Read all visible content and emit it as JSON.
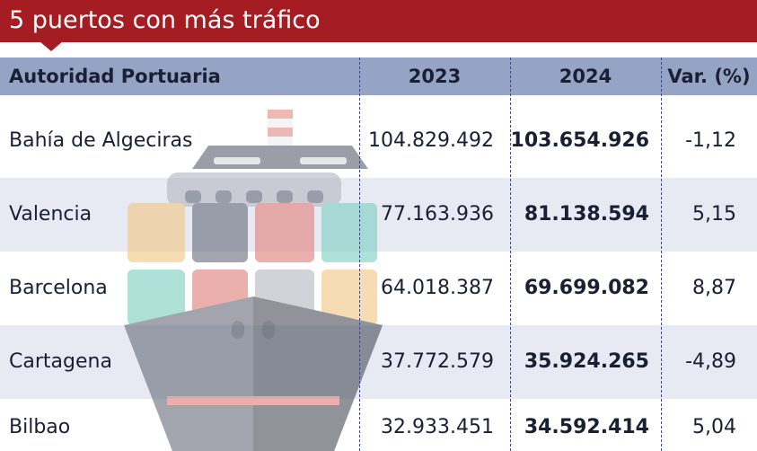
{
  "title": "5 puertos con más tráfico",
  "colors": {
    "title_bg": "#a51d23",
    "header_bg": "#95a3c5",
    "row_alt_bg": "#e8eaf3"
  },
  "illustration": "cargo-ship-icon",
  "chart_data": {
    "type": "table",
    "columns": [
      "Autoridad Portuaria",
      "2023",
      "2024",
      "Var. (%)"
    ],
    "rows": [
      {
        "port": "Bahía de Algeciras",
        "y2023": "104.829.492",
        "y2024": "103.654.926",
        "var": "-1,12"
      },
      {
        "port": "Valencia",
        "y2023": "77.163.936",
        "y2024": "81.138.594",
        "var": "5,15"
      },
      {
        "port": "Barcelona",
        "y2023": "64.018.387",
        "y2024": "69.699.082",
        "var": "8,87"
      },
      {
        "port": "Cartagena",
        "y2023": "37.772.579",
        "y2024": "35.924.265",
        "var": "-4,89"
      },
      {
        "port": "Bilbao",
        "y2023": "32.933.451",
        "y2024": "34.592.414",
        "var": "5,04"
      }
    ]
  }
}
